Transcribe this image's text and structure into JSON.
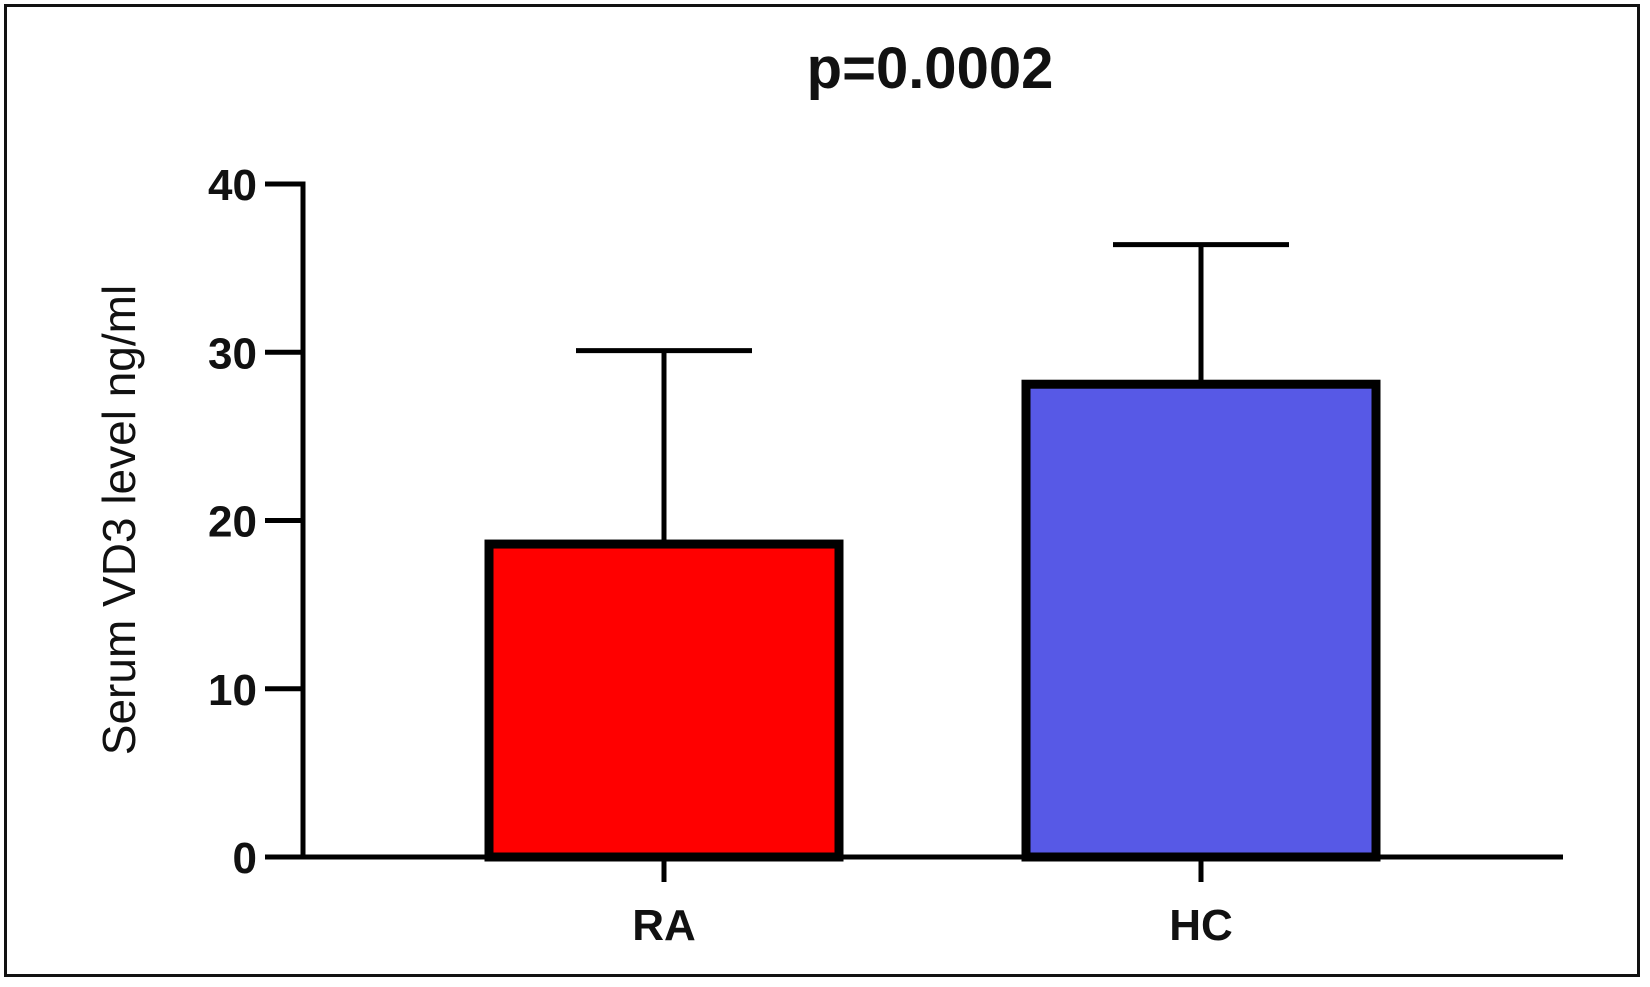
{
  "chart_data": {
    "type": "bar",
    "title": "p=0.0002",
    "xlabel": "",
    "ylabel": "Serum VD3 level ng/ml",
    "categories": [
      "RA",
      "HC"
    ],
    "values": [
      18.6,
      28.1
    ],
    "error_upper": [
      30.1,
      36.4
    ],
    "ylim": [
      0,
      40
    ],
    "yticks": [
      0,
      10,
      20,
      30,
      40
    ],
    "colors": [
      "#ff0000",
      "#5759e6"
    ],
    "grid": false,
    "legend": "none"
  }
}
